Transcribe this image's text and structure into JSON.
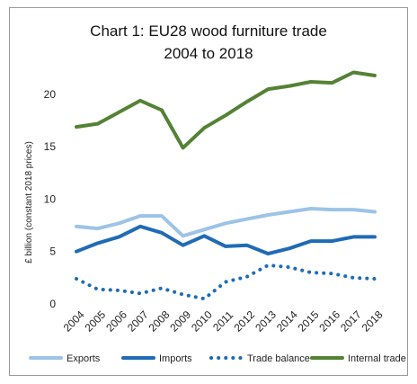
{
  "chart_data": {
    "type": "line",
    "title_line1": "Chart 1: EU28 wood furniture trade",
    "title_line2": "2004 to 2018",
    "xlabel": "",
    "ylabel": "£ billion (constant 2018 prices)",
    "ylim": [
      0,
      23
    ],
    "yticks": [
      0,
      5,
      10,
      15,
      20
    ],
    "grid": false,
    "legend_position": "bottom",
    "categories": [
      "2004",
      "2005",
      "2006",
      "2007",
      "2008",
      "2009",
      "2010",
      "2011",
      "2012",
      "2013",
      "2014",
      "2015",
      "2016",
      "2017",
      "2018"
    ],
    "series": [
      {
        "name": "Exports",
        "color": "#9dc3e6",
        "style": "solid",
        "values": [
          7.4,
          7.2,
          7.7,
          8.4,
          8.4,
          6.5,
          7.1,
          7.7,
          8.1,
          8.5,
          8.8,
          9.1,
          9.0,
          9.0,
          8.8
        ]
      },
      {
        "name": "Imports",
        "color": "#1f6bb5",
        "style": "solid",
        "values": [
          5.0,
          5.8,
          6.4,
          7.4,
          6.8,
          5.6,
          6.5,
          5.5,
          5.6,
          4.8,
          5.3,
          6.0,
          6.0,
          6.4,
          6.4
        ]
      },
      {
        "name": "Trade balance",
        "color": "#1f6bb5",
        "style": "dotted",
        "values": [
          2.4,
          1.4,
          1.3,
          1.0,
          1.5,
          0.9,
          0.5,
          2.1,
          2.6,
          3.7,
          3.5,
          3.0,
          2.9,
          2.5,
          2.4
        ]
      },
      {
        "name": "Internal trade",
        "color": "#548235",
        "style": "solid",
        "values": [
          16.9,
          17.2,
          18.3,
          19.4,
          18.5,
          14.9,
          16.8,
          18.0,
          19.3,
          20.5,
          20.8,
          21.2,
          21.1,
          22.1,
          21.8
        ]
      }
    ]
  }
}
